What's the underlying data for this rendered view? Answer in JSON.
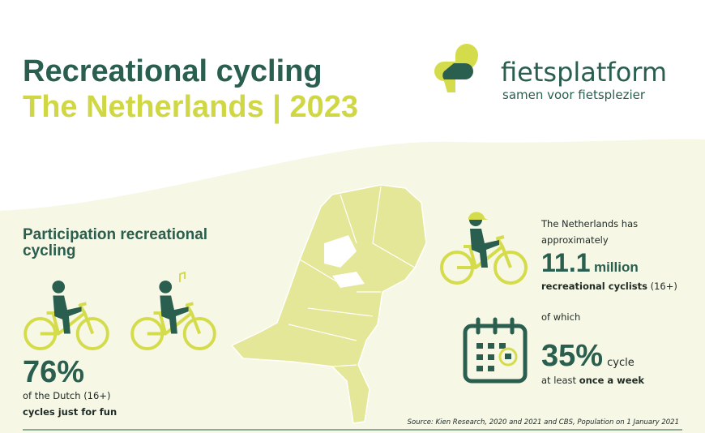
{
  "header": {
    "title_line1": "Recreational cycling",
    "title_line2": "The Netherlands | 2023"
  },
  "logo": {
    "name": "fietsplatform",
    "tagline": "samen voor fietsplezier"
  },
  "participation": {
    "heading": "Participation recreational cycling",
    "percent": "76%",
    "line1": "of the Dutch (16+)",
    "line2": "cycles just for fun"
  },
  "cyclists": {
    "intro": "The Netherlands has approximately",
    "number": "11.1",
    "unit": "million",
    "label": "recreational cyclists",
    "age": "(16+)"
  },
  "weekly": {
    "intro": "of which",
    "percent": "35%",
    "verb": "cycle",
    "prefix": "at least",
    "frequency": "once a week"
  },
  "footer": {
    "source": "Source: Kien Research, 2020 and 2021 and CBS, Population on 1 January 2021"
  }
}
